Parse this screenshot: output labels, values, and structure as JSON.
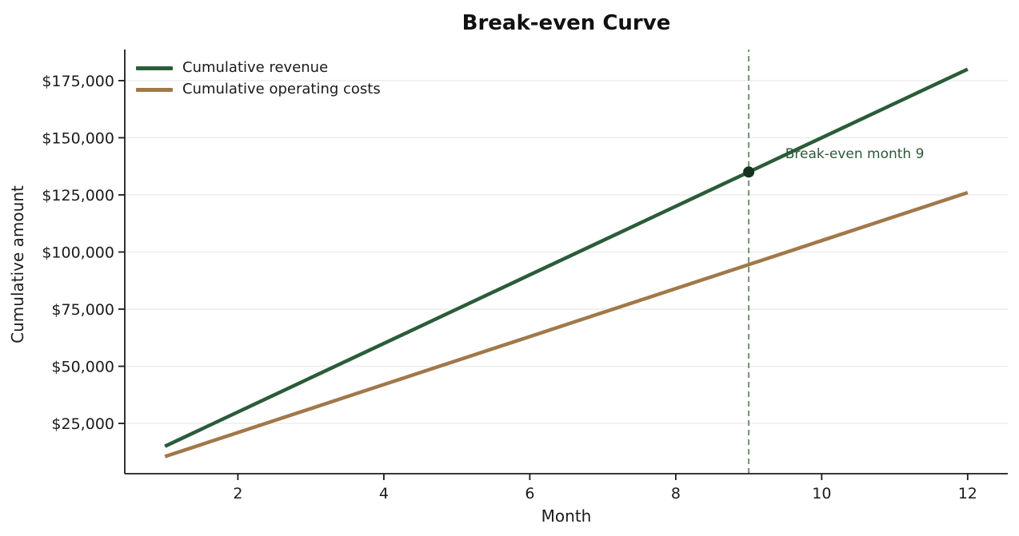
{
  "chart_data": {
    "type": "line",
    "title": "Break-even Curve",
    "xlabel": "Month",
    "ylabel": "Cumulative amount",
    "x": [
      1,
      2,
      3,
      4,
      5,
      6,
      7,
      8,
      9,
      10,
      11,
      12
    ],
    "series": [
      {
        "name": "Cumulative revenue",
        "color": "#2b5c3a",
        "values": [
          15000,
          30000,
          45000,
          60000,
          75000,
          90000,
          105000,
          120000,
          135000,
          150000,
          165000,
          180000
        ]
      },
      {
        "name": "Cumulative operating costs",
        "color": "#a1784a",
        "values": [
          10500,
          21000,
          31500,
          42000,
          52500,
          63000,
          73500,
          84000,
          94500,
          105000,
          115500,
          126000
        ]
      }
    ],
    "xticks": [
      2,
      4,
      6,
      8,
      10,
      12
    ],
    "yticks": [
      25000,
      50000,
      75000,
      100000,
      125000,
      150000,
      175000
    ],
    "ytick_prefix": "$",
    "xlim": [
      0.45,
      12.55
    ],
    "ylim": [
      3000,
      188600
    ],
    "grid": "horizontal",
    "grid_color": "#e9ede9",
    "axis_color": "#1b1b1b",
    "legend_position": "upper-left",
    "annotation": {
      "text": "Break-even month 9",
      "x": 9.5,
      "y": 141000,
      "color": "#2d5a39",
      "font_size": 17
    },
    "breakeven_marker": {
      "x": 9,
      "y": 135000,
      "color": "#16331f",
      "radius": 7
    },
    "vline": {
      "x": 9,
      "color": "#7e997e",
      "style": "dashed"
    }
  }
}
